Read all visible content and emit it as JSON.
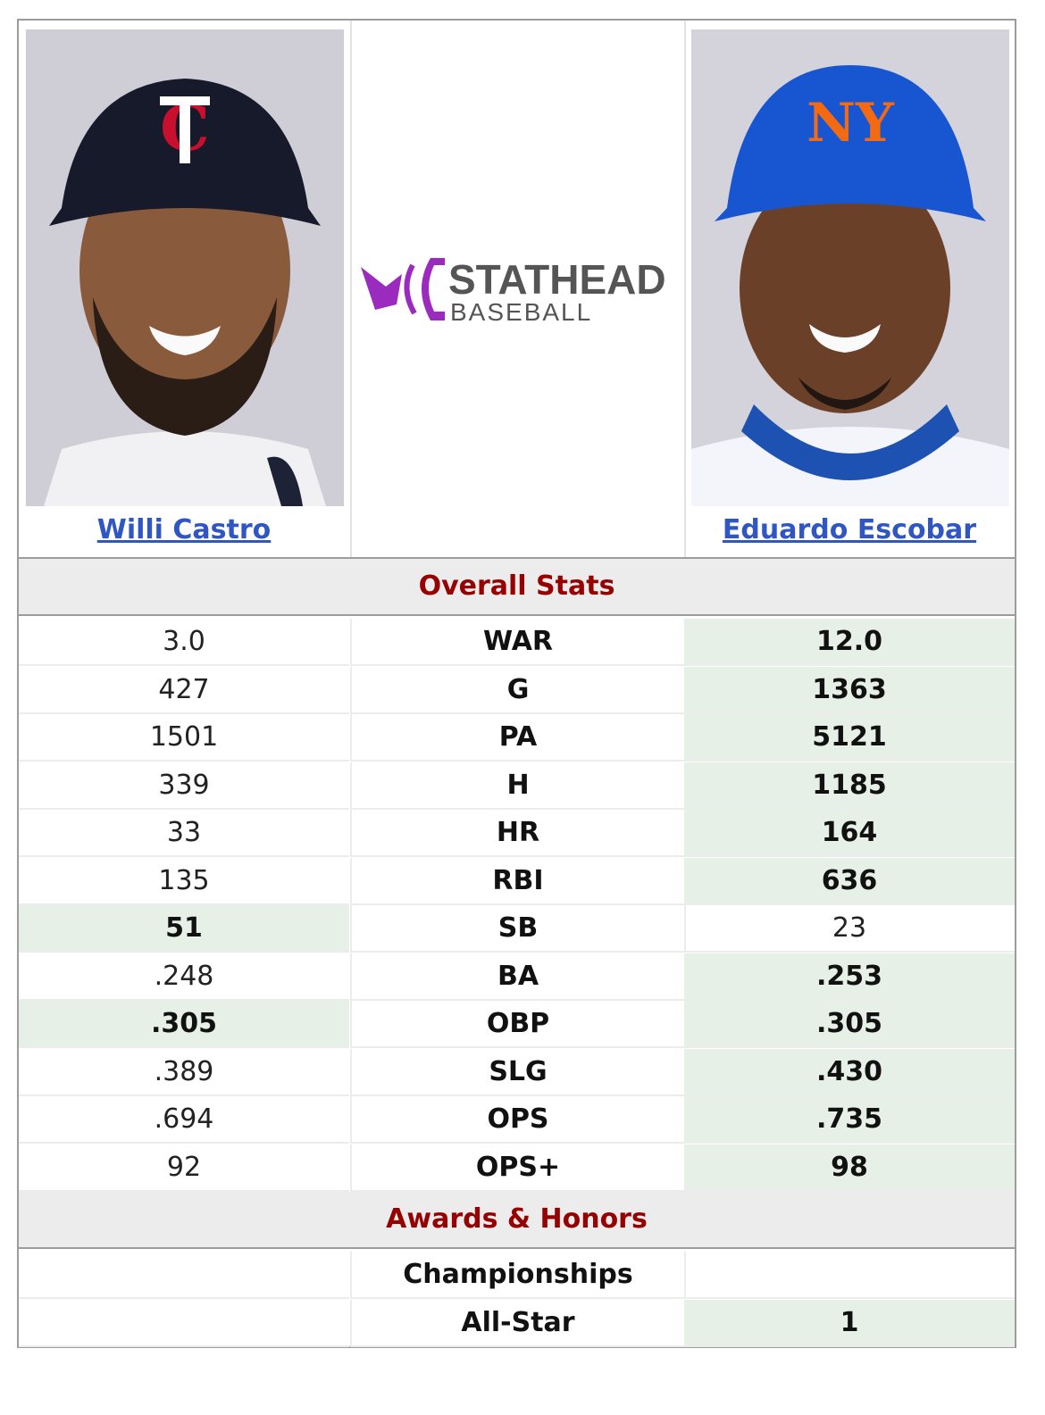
{
  "players": {
    "left": {
      "name": "Willi Castro"
    },
    "right": {
      "name": "Eduardo Escobar"
    }
  },
  "logo": {
    "line1": "STATHEAD",
    "line2": "BASEBALL"
  },
  "sections": {
    "overall": "Overall Stats",
    "awards": "Awards & Honors"
  },
  "stats": [
    {
      "label": "WAR",
      "left": "3.0",
      "right": "12.0",
      "winner": "right"
    },
    {
      "label": "G",
      "left": "427",
      "right": "1363",
      "winner": "right"
    },
    {
      "label": "PA",
      "left": "1501",
      "right": "5121",
      "winner": "right"
    },
    {
      "label": "H",
      "left": "339",
      "right": "1185",
      "winner": "right"
    },
    {
      "label": "HR",
      "left": "33",
      "right": "164",
      "winner": "right"
    },
    {
      "label": "RBI",
      "left": "135",
      "right": "636",
      "winner": "right"
    },
    {
      "label": "SB",
      "left": "51",
      "right": "23",
      "winner": "left"
    },
    {
      "label": "BA",
      "left": ".248",
      "right": ".253",
      "winner": "right"
    },
    {
      "label": "OBP",
      "left": ".305",
      "right": ".305",
      "winner": "both"
    },
    {
      "label": "SLG",
      "left": ".389",
      "right": ".430",
      "winner": "right"
    },
    {
      "label": "OPS",
      "left": ".694",
      "right": ".735",
      "winner": "right"
    },
    {
      "label": "OPS+",
      "left": "92",
      "right": "98",
      "winner": "right"
    }
  ],
  "awards": [
    {
      "label": "Championships",
      "left": "",
      "right": "",
      "winner": "none"
    },
    {
      "label": "All-Star",
      "left": "",
      "right": "1",
      "winner": "right"
    }
  ],
  "colors": {
    "win_bg": "#e6f0e6",
    "section_text": "#960000",
    "link": "#3056c4"
  }
}
